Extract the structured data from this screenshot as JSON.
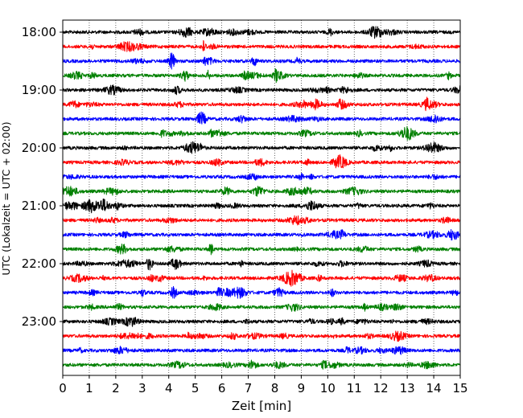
{
  "chart_data": {
    "type": "line",
    "title": "",
    "xlabel": "Zeit  [min]",
    "ylabel": "UTC (Lokalzeit = UTC + 02:00)",
    "xlim": [
      0,
      15
    ],
    "xticks": [
      "0",
      "1",
      "2",
      "3",
      "4",
      "5",
      "6",
      "7",
      "8",
      "9",
      "10",
      "11",
      "12",
      "13",
      "14",
      "15"
    ],
    "yticks": [
      "18:00",
      "19:00",
      "20:00",
      "21:00",
      "22:00",
      "23:00"
    ],
    "grid": "vertical dotted",
    "colors": [
      "#000000",
      "#ff0000",
      "#0000ff",
      "#008000"
    ],
    "traces_start": "18:00",
    "traces_interval_min": 15,
    "trace_count": 24
  }
}
